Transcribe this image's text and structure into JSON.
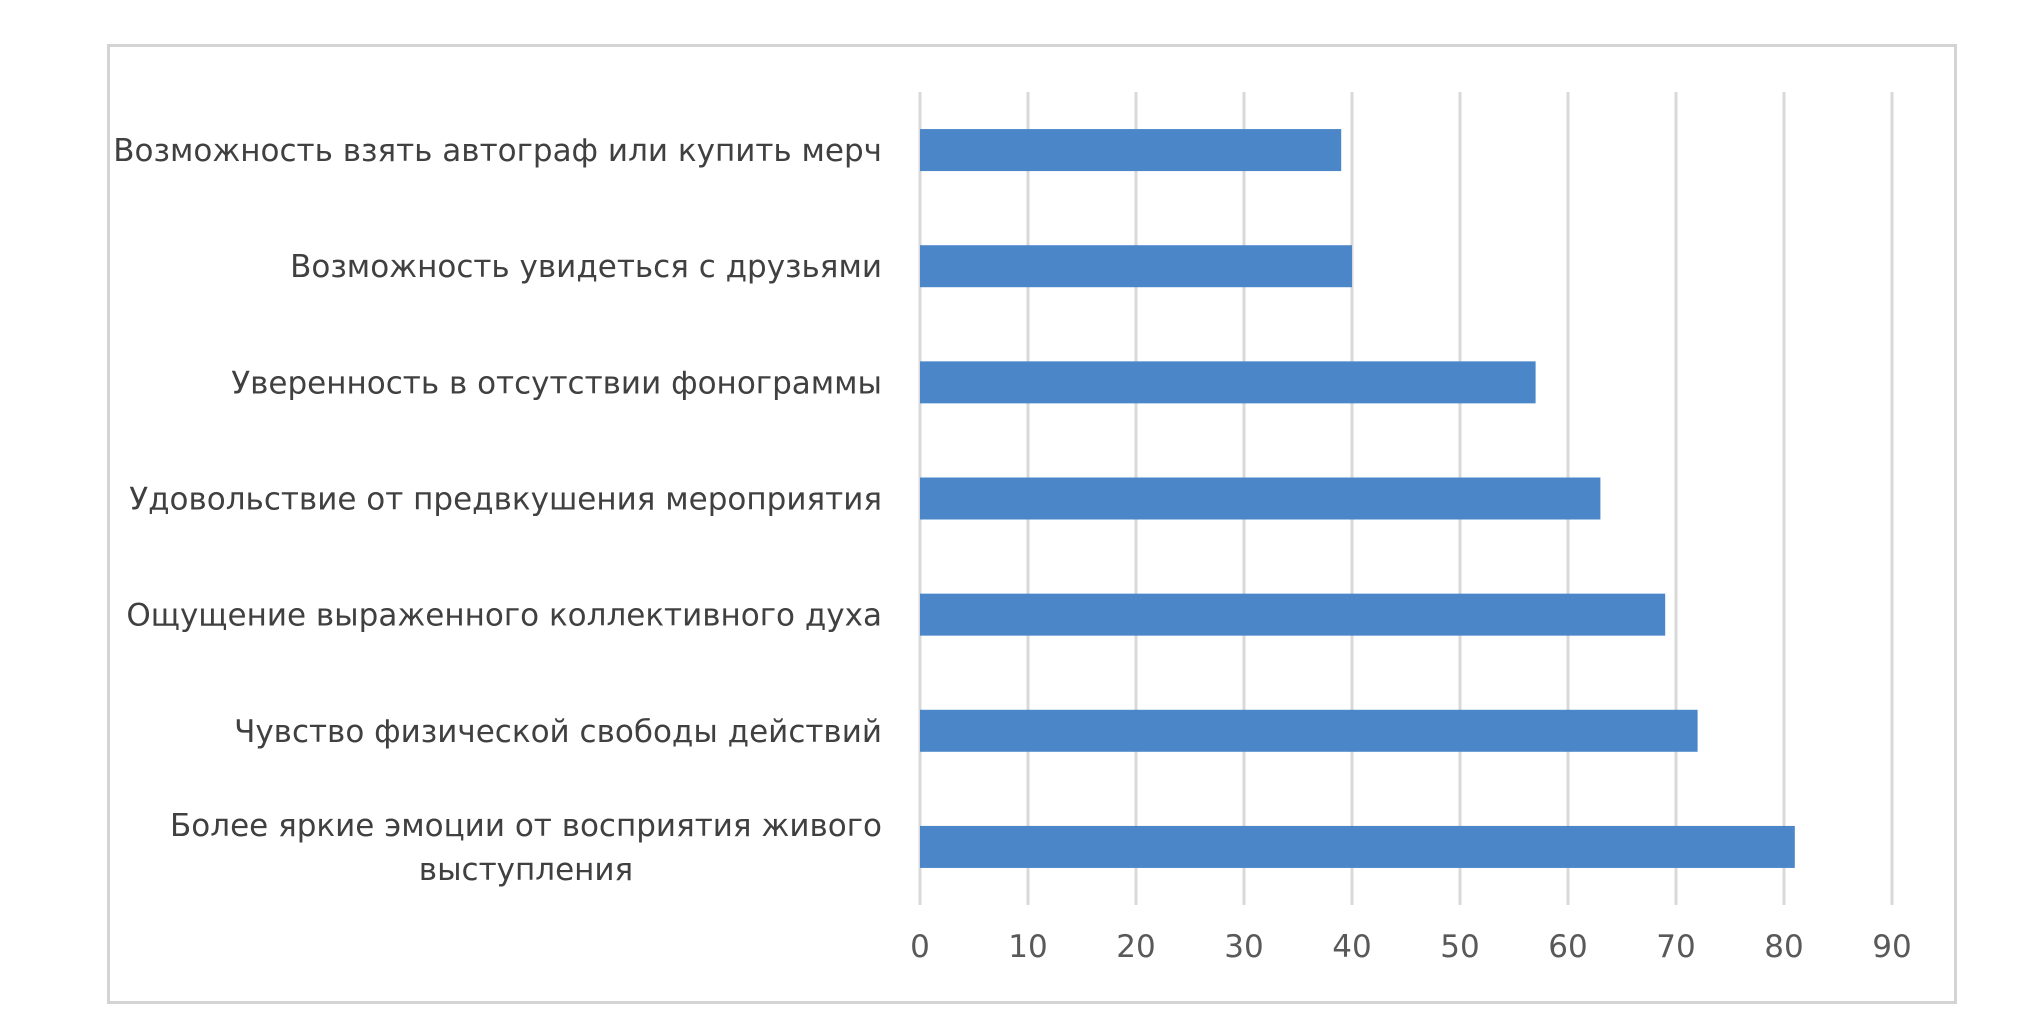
{
  "chart_data": {
    "type": "bar",
    "orientation": "horizontal",
    "title": "",
    "xlabel": "",
    "ylabel": "",
    "categories": [
      "Возможность взять автограф или купить мерч",
      "Возможность увидеться с друзьями",
      "Уверенность в отсутствии фонограммы",
      "Удовольствие от предвкушения мероприятия",
      "Ощущение выраженного коллективного духа",
      "Чувство физической свободы действий",
      "Более яркие эмоции от восприятия живого выступления"
    ],
    "category_lines": [
      [
        "Возможность взять автограф или купить мерч"
      ],
      [
        "Возможность увидеться с друзьями"
      ],
      [
        "Уверенность в отсутствии фонограммы"
      ],
      [
        "Удовольствие от предвкушения мероприятия"
      ],
      [
        "Ощущение выраженного коллективного духа"
      ],
      [
        "Чувство физической свободы действий"
      ],
      [
        "Более яркие эмоции от восприятия живого",
        "выступления"
      ]
    ],
    "values": [
      39,
      40,
      57,
      63,
      69,
      72,
      81
    ],
    "xlim": [
      0,
      90
    ],
    "ticks": [
      "0",
      "10",
      "20",
      "30",
      "40",
      "50",
      "60",
      "70",
      "80",
      "90"
    ],
    "grid": true,
    "legend": "none",
    "bar_color": "#4a86c8"
  }
}
